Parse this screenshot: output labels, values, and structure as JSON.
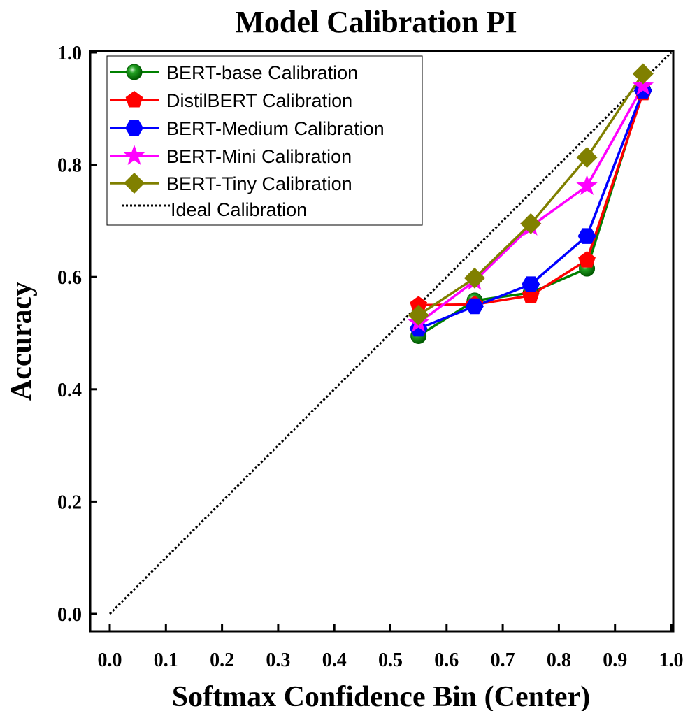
{
  "chart_data": {
    "type": "line",
    "title": "Model Calibration PI",
    "xlabel": "Softmax Confidence Bin (Center)",
    "ylabel": "Accuracy",
    "xlim": [
      0.0,
      1.0
    ],
    "ylim": [
      0.0,
      1.0
    ],
    "xticks": [
      "0.0",
      "0.1",
      "0.2",
      "0.3",
      "0.4",
      "0.5",
      "0.6",
      "0.7",
      "0.8",
      "0.9",
      "1.0"
    ],
    "yticks": [
      "0.0",
      "0.2",
      "0.4",
      "0.6",
      "0.8",
      "1.0"
    ],
    "grid": false,
    "legend_position": "top-left",
    "x": [
      0.55,
      0.65,
      0.75,
      0.85,
      0.95
    ],
    "series": [
      {
        "name": "BERT-base Calibration",
        "marker": "sphere",
        "color": "#008000",
        "values": [
          0.495,
          0.558,
          0.572,
          0.615,
          0.933
        ]
      },
      {
        "name": "DistilBERT Calibration",
        "marker": "pentagon",
        "color": "#ff0000",
        "values": [
          0.55,
          0.551,
          0.567,
          0.63,
          0.928
        ]
      },
      {
        "name": "BERT-Medium Calibration",
        "marker": "hexagon",
        "color": "#0000ff",
        "values": [
          0.508,
          0.548,
          0.587,
          0.673,
          0.932
        ]
      },
      {
        "name": "BERT-Mini Calibration",
        "marker": "star",
        "color": "#ff00ff",
        "values": [
          0.518,
          0.593,
          0.69,
          0.762,
          0.94
        ]
      },
      {
        "name": "BERT-Tiny Calibration",
        "marker": "diamond",
        "color": "#808000",
        "values": [
          0.532,
          0.598,
          0.695,
          0.813,
          0.962
        ]
      }
    ],
    "reference_line": {
      "name": "Ideal Calibration",
      "style": "dotted",
      "color": "#000000",
      "x": [
        0.0,
        1.0
      ],
      "y": [
        0.0,
        1.0
      ]
    }
  }
}
